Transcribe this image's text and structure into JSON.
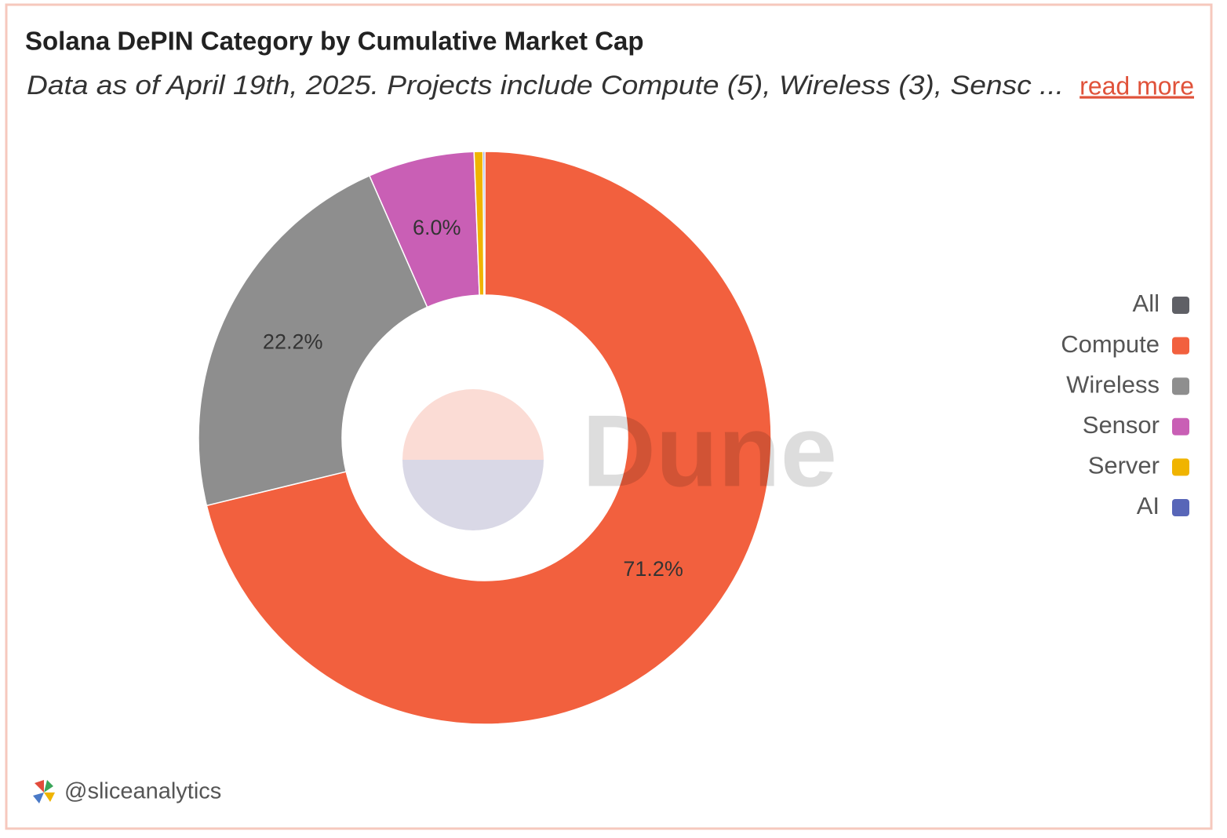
{
  "chart_data": {
    "type": "pie",
    "title": "Solana DePIN Category by Cumulative Market Cap",
    "subtitle": "Data as of April 19th, 2025. Projects include Compute (5), Wireless (3), Sensc ...",
    "link_text": "read more",
    "categories": [
      "All",
      "Compute",
      "Wireless",
      "Sensor",
      "Server",
      "AI"
    ],
    "values": [
      0,
      71.2,
      22.2,
      6.0,
      0.5,
      0.1
    ],
    "value_labels": [
      null,
      "71.2%",
      "22.2%",
      "6.0%",
      null,
      null
    ],
    "colors": [
      "#5f6066",
      "#f2603e",
      "#8e8e8e",
      "#c95fb5",
      "#f0b400",
      "#5866b8"
    ],
    "donut": true,
    "legend": "right",
    "watermark": "Dune",
    "footer": "@sliceanalytics"
  }
}
